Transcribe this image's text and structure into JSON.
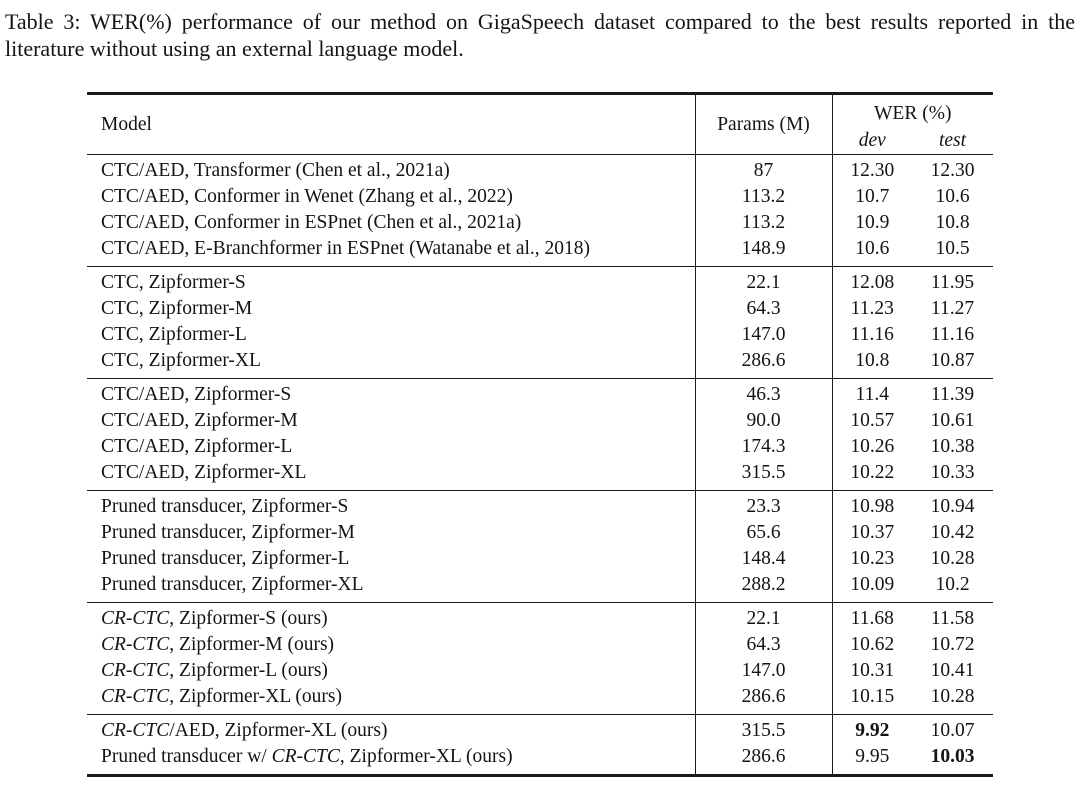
{
  "caption": "Table 3: WER(%) performance of our method on GigaSpeech dataset compared to the best results reported in the literature without using an external language model.",
  "table": {
    "headers": {
      "model": "Model",
      "params": "Params (M)",
      "wer": "WER (%)",
      "dev": "dev",
      "test": "test"
    },
    "groups": [
      {
        "rows": [
          {
            "model": [
              {
                "t": "CTC/AED, Transformer (Chen et al., 2021a)",
                "i": false
              }
            ],
            "params": "87",
            "dev": "12.30",
            "test": "12.30",
            "dev_bold": false,
            "test_bold": false
          },
          {
            "model": [
              {
                "t": "CTC/AED, Conformer in Wenet (Zhang et al., 2022)",
                "i": false
              }
            ],
            "params": "113.2",
            "dev": "10.7",
            "test": "10.6",
            "dev_bold": false,
            "test_bold": false
          },
          {
            "model": [
              {
                "t": "CTC/AED, Conformer in ESPnet (Chen et al., 2021a)",
                "i": false
              }
            ],
            "params": "113.2",
            "dev": "10.9",
            "test": "10.8",
            "dev_bold": false,
            "test_bold": false
          },
          {
            "model": [
              {
                "t": "CTC/AED, E-Branchformer in ESPnet (Watanabe et al., 2018)",
                "i": false
              }
            ],
            "params": "148.9",
            "dev": "10.6",
            "test": "10.5",
            "dev_bold": false,
            "test_bold": false
          }
        ]
      },
      {
        "rows": [
          {
            "model": [
              {
                "t": "CTC, Zipformer-S",
                "i": false
              }
            ],
            "params": "22.1",
            "dev": "12.08",
            "test": "11.95",
            "dev_bold": false,
            "test_bold": false
          },
          {
            "model": [
              {
                "t": "CTC, Zipformer-M",
                "i": false
              }
            ],
            "params": "64.3",
            "dev": "11.23",
            "test": "11.27",
            "dev_bold": false,
            "test_bold": false
          },
          {
            "model": [
              {
                "t": "CTC, Zipformer-L",
                "i": false
              }
            ],
            "params": "147.0",
            "dev": "11.16",
            "test": "11.16",
            "dev_bold": false,
            "test_bold": false
          },
          {
            "model": [
              {
                "t": "CTC, Zipformer-XL",
                "i": false
              }
            ],
            "params": "286.6",
            "dev": "10.8",
            "test": "10.87",
            "dev_bold": false,
            "test_bold": false
          }
        ]
      },
      {
        "rows": [
          {
            "model": [
              {
                "t": "CTC/AED, Zipformer-S",
                "i": false
              }
            ],
            "params": "46.3",
            "dev": "11.4",
            "test": "11.39",
            "dev_bold": false,
            "test_bold": false
          },
          {
            "model": [
              {
                "t": "CTC/AED, Zipformer-M",
                "i": false
              }
            ],
            "params": "90.0",
            "dev": "10.57",
            "test": "10.61",
            "dev_bold": false,
            "test_bold": false
          },
          {
            "model": [
              {
                "t": "CTC/AED, Zipformer-L",
                "i": false
              }
            ],
            "params": "174.3",
            "dev": "10.26",
            "test": "10.38",
            "dev_bold": false,
            "test_bold": false
          },
          {
            "model": [
              {
                "t": "CTC/AED, Zipformer-XL",
                "i": false
              }
            ],
            "params": "315.5",
            "dev": "10.22",
            "test": "10.33",
            "dev_bold": false,
            "test_bold": false
          }
        ]
      },
      {
        "rows": [
          {
            "model": [
              {
                "t": "Pruned transducer, Zipformer-S",
                "i": false
              }
            ],
            "params": "23.3",
            "dev": "10.98",
            "test": "10.94",
            "dev_bold": false,
            "test_bold": false
          },
          {
            "model": [
              {
                "t": "Pruned transducer, Zipformer-M",
                "i": false
              }
            ],
            "params": "65.6",
            "dev": "10.37",
            "test": "10.42",
            "dev_bold": false,
            "test_bold": false
          },
          {
            "model": [
              {
                "t": "Pruned transducer, Zipformer-L",
                "i": false
              }
            ],
            "params": "148.4",
            "dev": "10.23",
            "test": "10.28",
            "dev_bold": false,
            "test_bold": false
          },
          {
            "model": [
              {
                "t": "Pruned transducer, Zipformer-XL",
                "i": false
              }
            ],
            "params": "288.2",
            "dev": "10.09",
            "test": "10.2",
            "dev_bold": false,
            "test_bold": false
          }
        ]
      },
      {
        "rows": [
          {
            "model": [
              {
                "t": "CR-CTC",
                "i": true
              },
              {
                "t": ", Zipformer-S (ours)",
                "i": false
              }
            ],
            "params": "22.1",
            "dev": "11.68",
            "test": "11.58",
            "dev_bold": false,
            "test_bold": false
          },
          {
            "model": [
              {
                "t": "CR-CTC",
                "i": true
              },
              {
                "t": ", Zipformer-M (ours)",
                "i": false
              }
            ],
            "params": "64.3",
            "dev": "10.62",
            "test": "10.72",
            "dev_bold": false,
            "test_bold": false
          },
          {
            "model": [
              {
                "t": "CR-CTC",
                "i": true
              },
              {
                "t": ", Zipformer-L (ours)",
                "i": false
              }
            ],
            "params": "147.0",
            "dev": "10.31",
            "test": "10.41",
            "dev_bold": false,
            "test_bold": false
          },
          {
            "model": [
              {
                "t": "CR-CTC",
                "i": true
              },
              {
                "t": ", Zipformer-XL (ours)",
                "i": false
              }
            ],
            "params": "286.6",
            "dev": "10.15",
            "test": "10.28",
            "dev_bold": false,
            "test_bold": false
          }
        ]
      },
      {
        "rows": [
          {
            "model": [
              {
                "t": "CR-CTC",
                "i": true
              },
              {
                "t": "/AED, Zipformer-XL (ours)",
                "i": false
              }
            ],
            "params": "315.5",
            "dev": "9.92",
            "test": "10.07",
            "dev_bold": true,
            "test_bold": false
          },
          {
            "model": [
              {
                "t": "Pruned transducer w/ ",
                "i": false
              },
              {
                "t": "CR-CTC",
                "i": true
              },
              {
                "t": ", Zipformer-XL (ours)",
                "i": false
              }
            ],
            "params": "286.6",
            "dev": "9.95",
            "test": "10.03",
            "dev_bold": false,
            "test_bold": true
          }
        ]
      }
    ]
  }
}
